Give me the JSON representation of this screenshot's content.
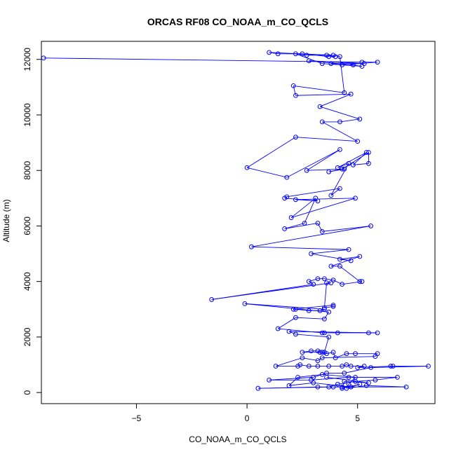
{
  "chart_data": {
    "type": "line",
    "title": "ORCAS RF08 CO_NOAA_m_CO_QCLS",
    "xlabel": "CO_NOAA_m_CO_QCLS",
    "ylabel": "Altitude (m)",
    "xlim": [
      -9.3,
      8.5
    ],
    "ylim": [
      -400,
      12650
    ],
    "x_ticks": [
      -5,
      0,
      5
    ],
    "y_ticks": [
      0,
      2000,
      4000,
      6000,
      8000,
      10000,
      12000
    ],
    "colors": {
      "series": "#0000ff",
      "axis": "#000000",
      "background": "#ffffff"
    },
    "grid": false,
    "legend": "none",
    "series": [
      {
        "marker": "open-circle",
        "points": [
          [
            -9.2,
            12050
          ],
          [
            5.2,
            11900
          ],
          [
            5.9,
            11900
          ],
          [
            4.3,
            11800
          ],
          [
            3.8,
            11850
          ],
          [
            5.3,
            11850
          ],
          [
            2.8,
            11950
          ],
          [
            4.8,
            11800
          ],
          [
            5.2,
            11750
          ],
          [
            3.4,
            11850
          ],
          [
            2.2,
            12200
          ],
          [
            2.7,
            12150
          ],
          [
            3.6,
            12150
          ],
          [
            4.0,
            12100
          ],
          [
            3.7,
            12100
          ],
          [
            2.5,
            12200
          ],
          [
            1.4,
            12200
          ],
          [
            1.0,
            12250
          ],
          [
            3.9,
            12150
          ],
          [
            4.2,
            12100
          ],
          [
            4.4,
            10800
          ],
          [
            2.1,
            11050
          ],
          [
            2.2,
            10700
          ],
          [
            4.7,
            10750
          ],
          [
            3.3,
            10300
          ],
          [
            5.1,
            9850
          ],
          [
            4.2,
            9750
          ],
          [
            3.4,
            9750
          ],
          [
            5.0,
            9050
          ],
          [
            2.2,
            9200
          ],
          [
            0.0,
            8100
          ],
          [
            1.8,
            7750
          ],
          [
            4.2,
            8750
          ],
          [
            2.7,
            8000
          ],
          [
            4.4,
            8050
          ],
          [
            3.7,
            7950
          ],
          [
            4.3,
            8050
          ],
          [
            5.5,
            8650
          ],
          [
            5.5,
            8250
          ],
          [
            4.8,
            8200
          ],
          [
            5.4,
            8650
          ],
          [
            4.1,
            8100
          ],
          [
            4.6,
            8250
          ],
          [
            3.8,
            7100
          ],
          [
            4.2,
            7350
          ],
          [
            1.8,
            7050
          ],
          [
            1.7,
            7000
          ],
          [
            3.2,
            6900
          ],
          [
            2.2,
            6950
          ],
          [
            4.9,
            7000
          ],
          [
            2.0,
            6300
          ],
          [
            3.1,
            7000
          ],
          [
            2.6,
            6100
          ],
          [
            1.7,
            5900
          ],
          [
            3.2,
            6100
          ],
          [
            3.4,
            5800
          ],
          [
            5.6,
            6000
          ],
          [
            0.2,
            5250
          ],
          [
            4.6,
            5150
          ],
          [
            2.9,
            5000
          ],
          [
            4.7,
            4750
          ],
          [
            4.2,
            4800
          ],
          [
            5.1,
            4900
          ],
          [
            3.8,
            4550
          ],
          [
            4.2,
            4550
          ],
          [
            5.1,
            4000
          ],
          [
            5.2,
            4000
          ],
          [
            4.3,
            3900
          ],
          [
            3.9,
            4050
          ],
          [
            3.5,
            4100
          ],
          [
            3.2,
            4100
          ],
          [
            2.8,
            4000
          ],
          [
            3.0,
            3900
          ],
          [
            -1.6,
            3350
          ],
          [
            3.8,
            3950
          ],
          [
            3.6,
            3950
          ],
          [
            3.5,
            3050
          ],
          [
            3.9,
            3100
          ],
          [
            3.9,
            3150
          ],
          [
            2.1,
            3000
          ],
          [
            2.2,
            3000
          ],
          [
            2.8,
            2950
          ],
          [
            3.3,
            2950
          ],
          [
            3.5,
            3000
          ],
          [
            -0.1,
            3200
          ],
          [
            3.7,
            2900
          ],
          [
            3.5,
            2650
          ],
          [
            2.2,
            2700
          ],
          [
            1.4,
            2300
          ],
          [
            3.4,
            2150
          ],
          [
            3.5,
            2150
          ],
          [
            4.1,
            2150
          ],
          [
            5.5,
            2150
          ],
          [
            5.9,
            2150
          ],
          [
            1.9,
            2200
          ],
          [
            2.2,
            2100
          ],
          [
            3.7,
            2000
          ],
          [
            3.5,
            1450
          ],
          [
            2.5,
            1450
          ],
          [
            2.9,
            1500
          ],
          [
            3.2,
            1500
          ],
          [
            3.3,
            1450
          ],
          [
            3.4,
            1450
          ],
          [
            3.6,
            1400
          ],
          [
            3.9,
            1450
          ],
          [
            4.0,
            1250
          ],
          [
            4.5,
            1400
          ],
          [
            4.9,
            1400
          ],
          [
            5.9,
            1400
          ],
          [
            5.8,
            1300
          ],
          [
            3.4,
            1250
          ],
          [
            3.2,
            1150
          ],
          [
            2.5,
            1250
          ],
          [
            1.3,
            950
          ],
          [
            2.3,
            950
          ],
          [
            2.4,
            1000
          ],
          [
            2.8,
            950
          ],
          [
            3.2,
            950
          ],
          [
            3.7,
            950
          ],
          [
            4.3,
            950
          ],
          [
            4.5,
            1000
          ],
          [
            4.7,
            950
          ],
          [
            5.3,
            950
          ],
          [
            5.0,
            900
          ],
          [
            6.5,
            950
          ],
          [
            6.6,
            950
          ],
          [
            8.2,
            950
          ],
          [
            5.6,
            900
          ],
          [
            4.4,
            700
          ],
          [
            3.6,
            700
          ],
          [
            3.0,
            550
          ],
          [
            1.0,
            450
          ],
          [
            2.9,
            450
          ],
          [
            4.6,
            550
          ],
          [
            6.8,
            550
          ],
          [
            5.8,
            450
          ],
          [
            4.9,
            400
          ],
          [
            4.1,
            300
          ],
          [
            3.7,
            200
          ],
          [
            3.2,
            200
          ],
          [
            0.5,
            150
          ],
          [
            3.9,
            200
          ],
          [
            4.3,
            200
          ],
          [
            7.2,
            200
          ],
          [
            5.4,
            250
          ],
          [
            4.5,
            150
          ],
          [
            4.6,
            300
          ],
          [
            4.9,
            550
          ],
          [
            3.4,
            650
          ],
          [
            2.3,
            550
          ],
          [
            1.9,
            250
          ],
          [
            3.0,
            350
          ],
          [
            4.7,
            200
          ],
          [
            5.1,
            300
          ],
          [
            4.3,
            150
          ],
          [
            4.4,
            400
          ],
          [
            5.5,
            350
          ],
          [
            3.6,
            550
          ]
        ]
      }
    ]
  }
}
